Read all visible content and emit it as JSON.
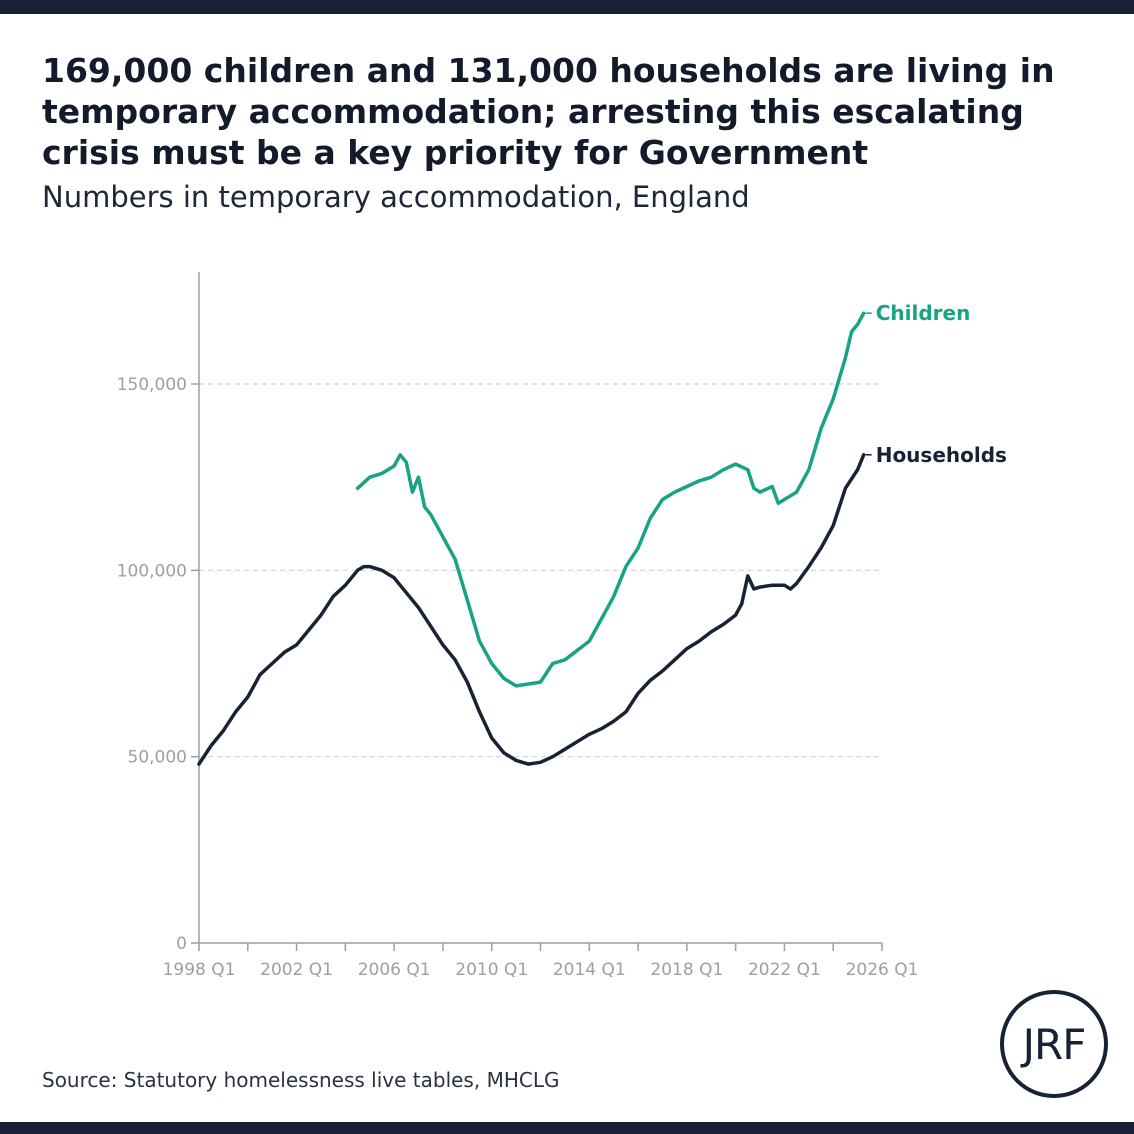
{
  "title": "169,000 children and 131,000 households are living in temporary accommodation; arresting this escalating crisis must be a key priority for Government",
  "subtitle": "Numbers in temporary accommodation, England",
  "source": "Source: Statutory homelessness live tables, MHCLG",
  "logo_text": "JRF",
  "colors": {
    "children": "#17a384",
    "households": "#172335",
    "axis": "#9a9ea6",
    "grid": "#cfd2d6",
    "tick_text": "#9b9fa6",
    "bars": "#172335"
  },
  "chart_data": {
    "type": "line",
    "title": "169,000 children and 131,000 households are living in temporary accommodation; arresting this escalating crisis must be a key priority for Government",
    "subtitle": "Numbers in temporary accommodation, England",
    "xlabel": "",
    "ylabel": "",
    "xlim": [
      1998.0,
      2026.0
    ],
    "ylim": [
      0,
      180000
    ],
    "x_tick_labels": [
      "1998 Q1",
      "2002 Q1",
      "2006 Q1",
      "2010 Q1",
      "2014 Q1",
      "2018 Q1",
      "2022 Q1",
      "2026 Q1"
    ],
    "x_tick_values": [
      1998,
      2002,
      2006,
      2010,
      2014,
      2018,
      2022,
      2026
    ],
    "y_ticks": [
      0,
      50000,
      100000,
      150000
    ],
    "y_tick_labels": [
      "0",
      "50,000",
      "100,000",
      "150,000"
    ],
    "grid": "horizontal dashed",
    "legend": "direct labels at line ends",
    "series": [
      {
        "name": "Households",
        "color": "#172335",
        "points": [
          [
            1998.0,
            48000
          ],
          [
            1998.5,
            53000
          ],
          [
            1999.0,
            57000
          ],
          [
            1999.5,
            62000
          ],
          [
            2000.0,
            66000
          ],
          [
            2000.5,
            72000
          ],
          [
            2001.0,
            75000
          ],
          [
            2001.5,
            78000
          ],
          [
            2002.0,
            80000
          ],
          [
            2002.5,
            84000
          ],
          [
            2003.0,
            88000
          ],
          [
            2003.5,
            93000
          ],
          [
            2004.0,
            96000
          ],
          [
            2004.5,
            100000
          ],
          [
            2004.75,
            101000
          ],
          [
            2005.0,
            101000
          ],
          [
            2005.5,
            100000
          ],
          [
            2006.0,
            98000
          ],
          [
            2006.5,
            94000
          ],
          [
            2007.0,
            90000
          ],
          [
            2007.5,
            85000
          ],
          [
            2008.0,
            80000
          ],
          [
            2008.5,
            76000
          ],
          [
            2009.0,
            70000
          ],
          [
            2009.5,
            62000
          ],
          [
            2010.0,
            55000
          ],
          [
            2010.5,
            51000
          ],
          [
            2011.0,
            49000
          ],
          [
            2011.5,
            48000
          ],
          [
            2012.0,
            48500
          ],
          [
            2012.5,
            50000
          ],
          [
            2013.0,
            52000
          ],
          [
            2013.5,
            54000
          ],
          [
            2014.0,
            56000
          ],
          [
            2014.5,
            57500
          ],
          [
            2015.0,
            59500
          ],
          [
            2015.5,
            62000
          ],
          [
            2016.0,
            67000
          ],
          [
            2016.5,
            70500
          ],
          [
            2017.0,
            73000
          ],
          [
            2017.5,
            76000
          ],
          [
            2018.0,
            79000
          ],
          [
            2018.5,
            81000
          ],
          [
            2019.0,
            83500
          ],
          [
            2019.5,
            85500
          ],
          [
            2020.0,
            88000
          ],
          [
            2020.25,
            91000
          ],
          [
            2020.5,
            98500
          ],
          [
            2020.75,
            95000
          ],
          [
            2021.0,
            95500
          ],
          [
            2021.5,
            96000
          ],
          [
            2022.0,
            96000
          ],
          [
            2022.25,
            95000
          ],
          [
            2022.5,
            96500
          ],
          [
            2023.0,
            101000
          ],
          [
            2023.5,
            106000
          ],
          [
            2024.0,
            112000
          ],
          [
            2024.5,
            122000
          ],
          [
            2025.0,
            127000
          ],
          [
            2025.25,
            131000
          ]
        ]
      },
      {
        "name": "Children",
        "color": "#17a384",
        "points": [
          [
            2004.5,
            122000
          ],
          [
            2005.0,
            125000
          ],
          [
            2005.5,
            126000
          ],
          [
            2006.0,
            128000
          ],
          [
            2006.25,
            131000
          ],
          [
            2006.5,
            129000
          ],
          [
            2006.75,
            121000
          ],
          [
            2007.0,
            125000
          ],
          [
            2007.25,
            117000
          ],
          [
            2007.5,
            115000
          ],
          [
            2008.0,
            109000
          ],
          [
            2008.5,
            103000
          ],
          [
            2009.0,
            92000
          ],
          [
            2009.5,
            81000
          ],
          [
            2010.0,
            75000
          ],
          [
            2010.5,
            71000
          ],
          [
            2011.0,
            69000
          ],
          [
            2011.5,
            69500
          ],
          [
            2012.0,
            70000
          ],
          [
            2012.5,
            75000
          ],
          [
            2013.0,
            76000
          ],
          [
            2013.5,
            78500
          ],
          [
            2014.0,
            81000
          ],
          [
            2014.5,
            87000
          ],
          [
            2015.0,
            93000
          ],
          [
            2015.5,
            101000
          ],
          [
            2016.0,
            106000
          ],
          [
            2016.5,
            114000
          ],
          [
            2017.0,
            119000
          ],
          [
            2017.5,
            121000
          ],
          [
            2018.0,
            122500
          ],
          [
            2018.5,
            124000
          ],
          [
            2019.0,
            125000
          ],
          [
            2019.5,
            127000
          ],
          [
            2020.0,
            128500
          ],
          [
            2020.5,
            127000
          ],
          [
            2020.75,
            122000
          ],
          [
            2021.0,
            121000
          ],
          [
            2021.5,
            122500
          ],
          [
            2021.75,
            118000
          ],
          [
            2022.0,
            119000
          ],
          [
            2022.5,
            121000
          ],
          [
            2023.0,
            127000
          ],
          [
            2023.5,
            138000
          ],
          [
            2024.0,
            146000
          ],
          [
            2024.5,
            157000
          ],
          [
            2024.75,
            164000
          ],
          [
            2025.0,
            166000
          ],
          [
            2025.25,
            169000
          ]
        ]
      }
    ]
  }
}
